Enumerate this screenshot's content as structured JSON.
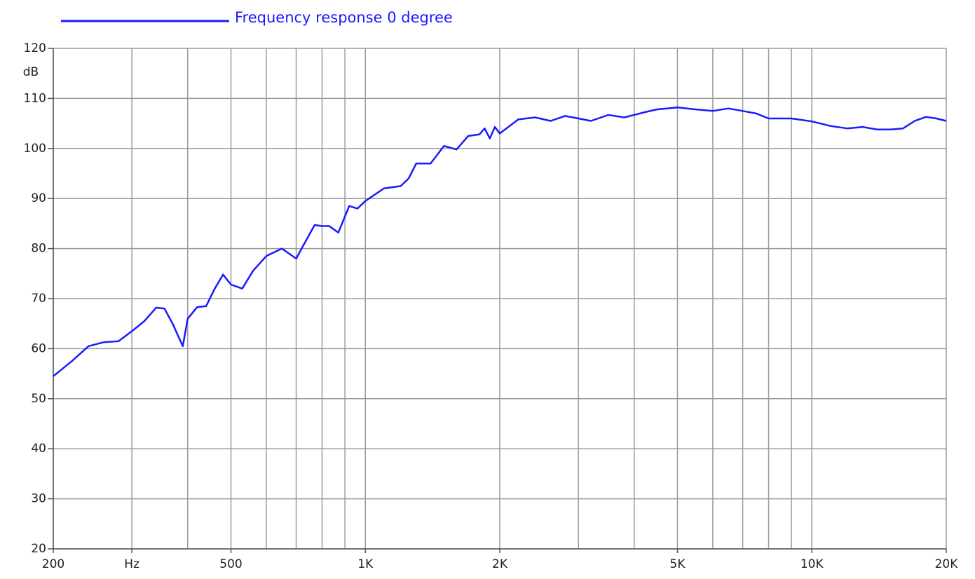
{
  "chart_data": {
    "type": "line",
    "y_unit": "dB",
    "xscale": "log",
    "grid": true,
    "legend": "top-left",
    "xlim": [
      200,
      20000
    ],
    "ylim": [
      20,
      120
    ],
    "yticks": [
      20,
      30,
      40,
      50,
      60,
      70,
      80,
      90,
      100,
      110,
      120
    ],
    "xticks": [
      200,
      {
        "value": 300,
        "label": "Hz"
      },
      500,
      {
        "value": 1000,
        "label": "1K"
      },
      {
        "value": 2000,
        "label": "2K"
      },
      {
        "value": 5000,
        "label": "5K"
      },
      {
        "value": 10000,
        "label": "10K"
      },
      {
        "value": 20000,
        "label": "20K"
      }
    ],
    "xminor": [
      400,
      600,
      700,
      800,
      900,
      3000,
      4000,
      6000,
      7000,
      8000,
      9000
    ],
    "x": [
      200,
      220,
      240,
      260,
      280,
      300,
      320,
      340,
      355,
      370,
      390,
      400,
      420,
      440,
      460,
      480,
      500,
      530,
      560,
      600,
      650,
      700,
      730,
      770,
      800,
      830,
      870,
      920,
      960,
      1000,
      1100,
      1200,
      1250,
      1300,
      1400,
      1500,
      1600,
      1700,
      1800,
      1850,
      1900,
      1950,
      2000,
      2200,
      2400,
      2600,
      2800,
      3000,
      3200,
      3500,
      3800,
      4200,
      4500,
      5000,
      5500,
      6000,
      6500,
      7000,
      7500,
      8000,
      9000,
      10000,
      11000,
      12000,
      13000,
      14000,
      15000,
      16000,
      17000,
      18000,
      19000,
      20000
    ],
    "series": [
      {
        "name": "Frequency response 0 degree",
        "color": "#1a1aff",
        "values": [
          54.5,
          57.5,
          60.5,
          61.3,
          61.5,
          63.5,
          65.5,
          68.2,
          68,
          65,
          60.5,
          66,
          68.3,
          68.5,
          72,
          74.8,
          72.8,
          72,
          75.5,
          78.5,
          80,
          78,
          81,
          84.7,
          84.5,
          84.5,
          83.2,
          88.5,
          88,
          89.5,
          92,
          92.5,
          94,
          97,
          97,
          100.5,
          99.8,
          102.5,
          102.8,
          104,
          102,
          104.3,
          103,
          105.8,
          106.2,
          105.5,
          106.5,
          106,
          105.5,
          106.7,
          106.2,
          107.2,
          107.8,
          108.2,
          107.8,
          107.5,
          108,
          107.5,
          107,
          106,
          106,
          105.4,
          104.5,
          104,
          104.3,
          103.8,
          103.8,
          104,
          105.5,
          106.3,
          106,
          105.5
        ]
      }
    ]
  }
}
